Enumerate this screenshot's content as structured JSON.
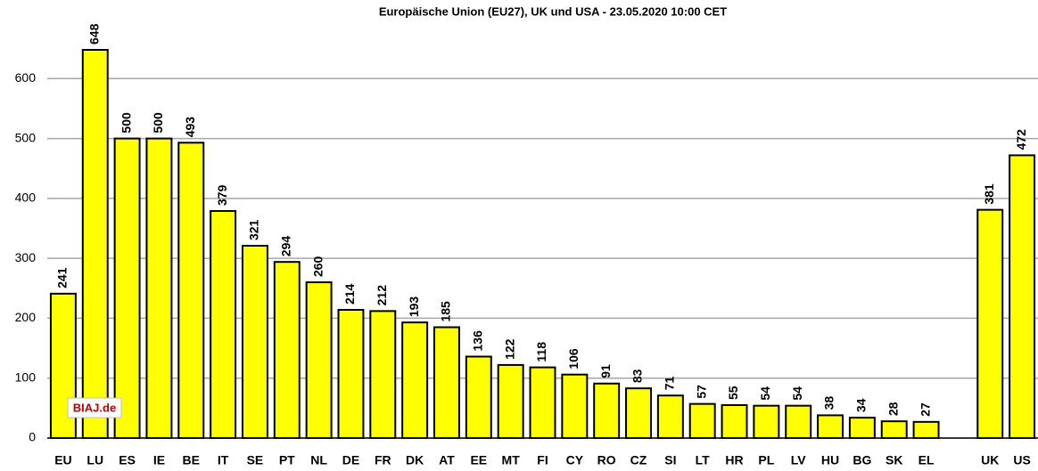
{
  "chart_data": {
    "type": "bar",
    "title": "Europäische Union (EU27), UK und USA - 23.05.2020 10:00 CET",
    "categories": [
      "EU",
      "LU",
      "ES",
      "IE",
      "BE",
      "IT",
      "SE",
      "PT",
      "NL",
      "DE",
      "FR",
      "DK",
      "AT",
      "EE",
      "MT",
      "FI",
      "CY",
      "RO",
      "CZ",
      "SI",
      "LT",
      "HR",
      "PL",
      "LV",
      "HU",
      "BG",
      "SK",
      "EL",
      null,
      "UK",
      "US"
    ],
    "values": [
      241,
      648,
      500,
      500,
      493,
      379,
      321,
      294,
      260,
      214,
      212,
      193,
      185,
      136,
      122,
      118,
      106,
      91,
      83,
      71,
      57,
      55,
      54,
      54,
      38,
      34,
      28,
      27,
      null,
      381,
      472
    ],
    "color": "#ffff00",
    "ylim": [
      0,
      700
    ],
    "yticks": [
      0,
      100,
      200,
      300,
      400,
      500,
      600
    ],
    "grid": true,
    "watermark": "BIAJ.de"
  }
}
